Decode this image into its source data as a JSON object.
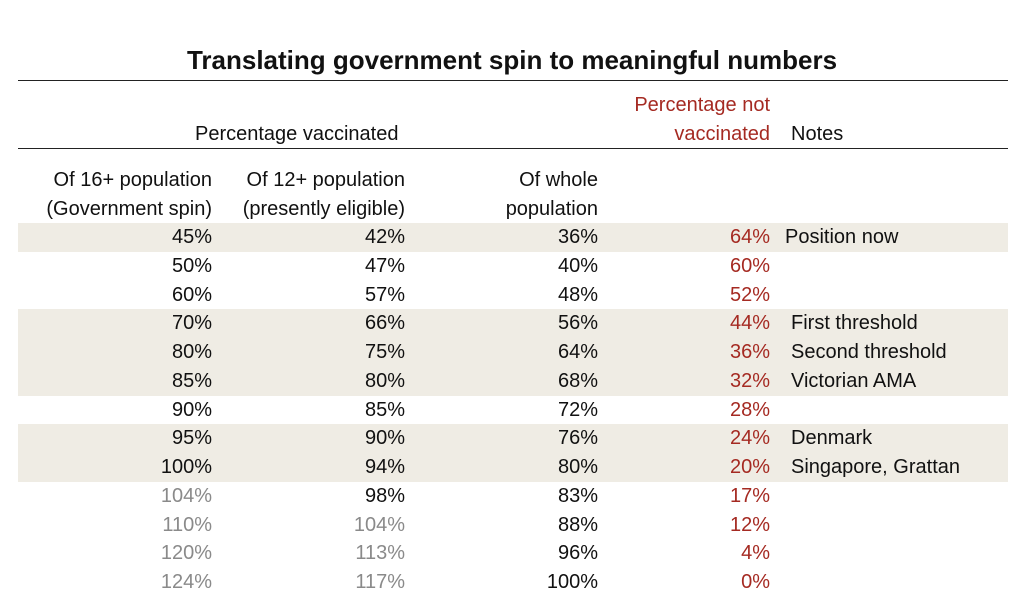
{
  "title": "Translating government spin to meaningful numbers",
  "header": {
    "group": "Percentage vaccinated",
    "not_vaccinated": [
      "Percentage not",
      "vaccinated"
    ],
    "notes": "Notes"
  },
  "columns": [
    [
      "Of 16+ population",
      "(Government spin)"
    ],
    [
      "Of 12+ population",
      "(presently eligible)"
    ],
    [
      "Of whole",
      "population"
    ]
  ],
  "table": {
    "rows": [
      [
        "45%",
        "42%",
        "36%",
        "64%",
        "Position now"
      ],
      [
        "50%",
        "47%",
        "40%",
        "60%"
      ],
      [
        "60%",
        "57%",
        "48%",
        "52%"
      ],
      [
        "70%",
        "66%",
        "56%",
        "44%",
        "First threshold"
      ],
      [
        "80%",
        "75%",
        "64%",
        "36%",
        "Second threshold"
      ],
      [
        "85%",
        "80%",
        "68%",
        "32%",
        "Victorian AMA"
      ],
      [
        "90%",
        "85%",
        "72%",
        "28%"
      ],
      [
        "95%",
        "90%",
        "76%",
        "24%",
        "Denmark"
      ],
      [
        "100%",
        "94%",
        "80%",
        "20%",
        "Singapore, Grattan"
      ],
      [
        "104%",
        "98%",
        "83%",
        "17%"
      ],
      [
        "110%",
        "104%",
        "88%",
        "12%"
      ],
      [
        "120%",
        "113%",
        "96%",
        "4%"
      ],
      [
        "124%",
        "117%",
        "100%",
        "0%"
      ]
    ]
  }
}
